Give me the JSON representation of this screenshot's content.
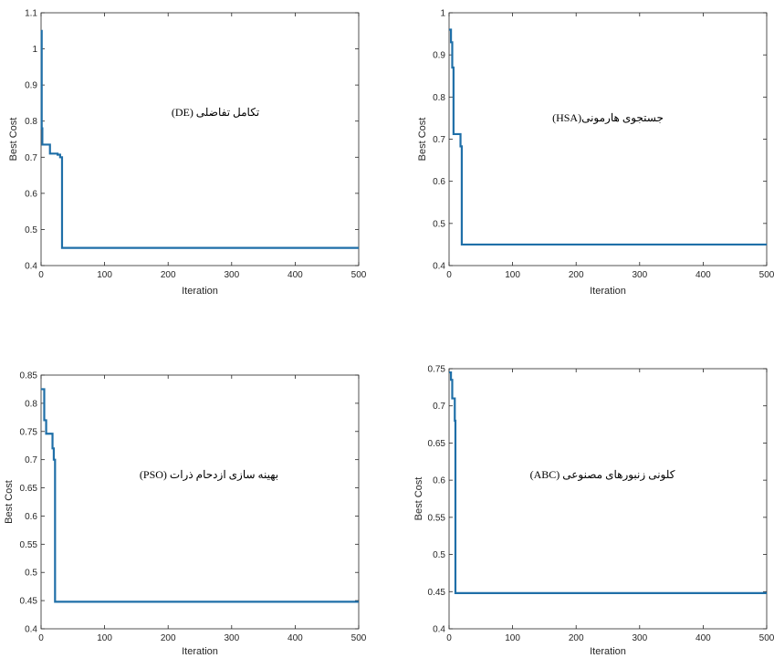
{
  "colors": {
    "series": "#1f6fa8",
    "axis": "#262626"
  },
  "chart_data": [
    {
      "type": "line",
      "xlabel": "Iteration",
      "ylabel": "Best Cost",
      "annotation": "تکامل تفاضلی (DE)",
      "xlim": [
        0,
        500
      ],
      "ylim": [
        0.4,
        1.1
      ],
      "xticks": [
        "0",
        "100",
        "200",
        "300",
        "400",
        "500"
      ],
      "yticks": [
        "0.4",
        "0.5",
        "0.6",
        "0.7",
        "0.8",
        "0.9",
        "1",
        "1.1"
      ],
      "grid": false,
      "x": [
        0,
        1,
        1,
        2,
        2,
        14,
        14,
        26,
        26,
        30,
        30,
        33,
        33,
        500
      ],
      "y": [
        1.05,
        1.05,
        0.78,
        0.78,
        0.735,
        0.735,
        0.71,
        0.71,
        0.707,
        0.707,
        0.7,
        0.7,
        0.449,
        0.449
      ]
    },
    {
      "type": "line",
      "xlabel": "Iteration",
      "ylabel": "Best Cost",
      "annotation": "جستجوی هارمونی(HSA)",
      "xlim": [
        0,
        500
      ],
      "ylim": [
        0.4,
        1.0
      ],
      "xticks": [
        "0",
        "100",
        "200",
        "300",
        "400",
        "500"
      ],
      "yticks": [
        "0.4",
        "0.5",
        "0.6",
        "0.7",
        "0.8",
        "0.9",
        "1"
      ],
      "grid": false,
      "x": [
        0,
        3,
        3,
        5,
        5,
        7,
        7,
        18,
        18,
        20,
        20,
        500
      ],
      "y": [
        0.96,
        0.96,
        0.93,
        0.93,
        0.87,
        0.87,
        0.712,
        0.712,
        0.683,
        0.683,
        0.45,
        0.45
      ]
    },
    {
      "type": "line",
      "xlabel": "Iteration",
      "ylabel": "Best Cost",
      "annotation": "بهینه سازی ازدحام ذرات (PSO)",
      "xlim": [
        0,
        500
      ],
      "ylim": [
        0.4,
        0.85
      ],
      "xticks": [
        "0",
        "100",
        "200",
        "300",
        "400",
        "500"
      ],
      "yticks": [
        "0.4",
        "0.45",
        "0.5",
        "0.55",
        "0.6",
        "0.65",
        "0.7",
        "0.75",
        "0.8",
        "0.85"
      ],
      "grid": false,
      "x": [
        0,
        5,
        5,
        8,
        8,
        18,
        18,
        20,
        20,
        22,
        22,
        500
      ],
      "y": [
        0.825,
        0.825,
        0.77,
        0.77,
        0.746,
        0.746,
        0.72,
        0.72,
        0.7,
        0.7,
        0.448,
        0.448
      ]
    },
    {
      "type": "line",
      "xlabel": "Iteration",
      "ylabel": "Best Cost",
      "annotation": "کلونی زنبورهای مصنوعی (ABC)",
      "xlim": [
        0,
        500
      ],
      "ylim": [
        0.4,
        0.75
      ],
      "xticks": [
        "0",
        "100",
        "200",
        "300",
        "400",
        "500"
      ],
      "yticks": [
        "0.4",
        "0.45",
        "0.5",
        "0.55",
        "0.6",
        "0.65",
        "0.7",
        "0.75"
      ],
      "grid": false,
      "x": [
        0,
        3,
        3,
        5,
        5,
        9,
        9,
        10,
        10,
        500
      ],
      "y": [
        0.745,
        0.745,
        0.735,
        0.735,
        0.71,
        0.71,
        0.68,
        0.68,
        0.448,
        0.448
      ]
    }
  ]
}
